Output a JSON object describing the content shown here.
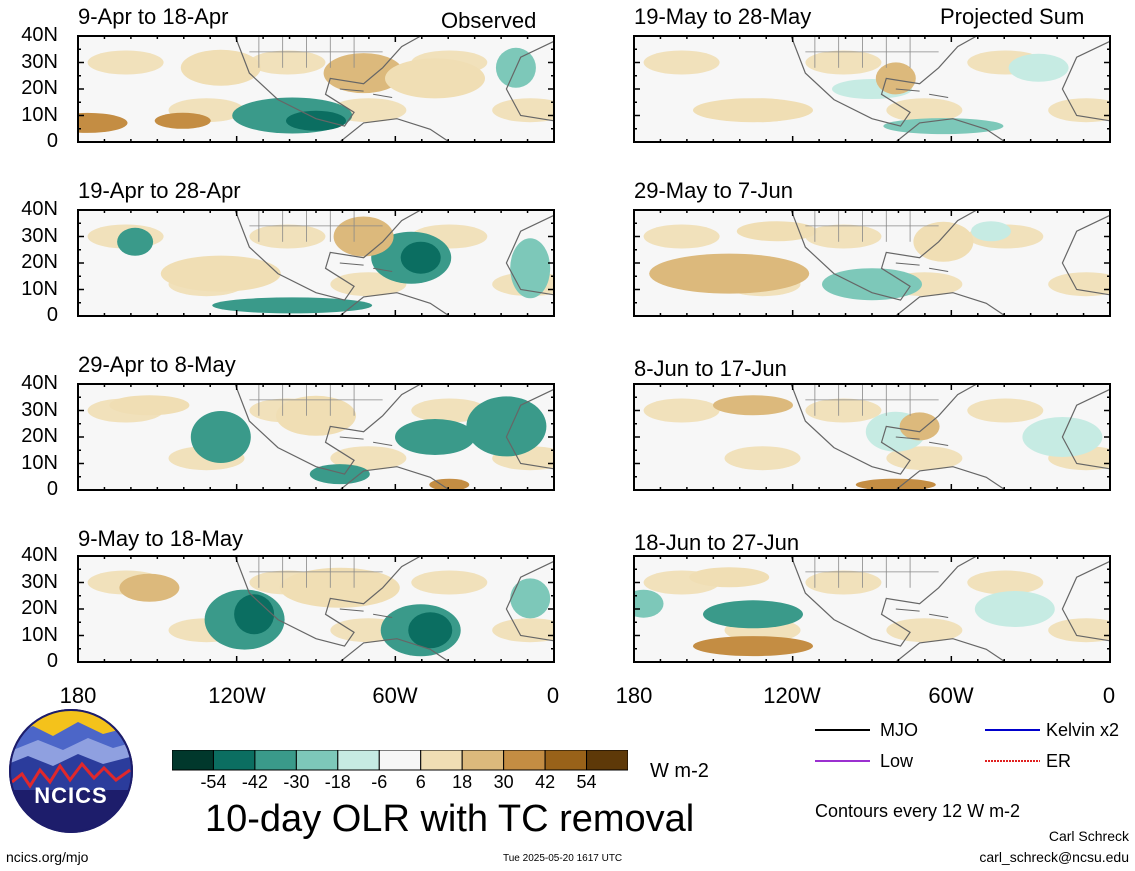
{
  "header": {
    "observed_label": "Observed",
    "projected_label": "Projected Sum"
  },
  "panels_left": [
    {
      "title": "9-Apr to 18-Apr"
    },
    {
      "title": "19-Apr to 28-Apr"
    },
    {
      "title": "29-Apr to 8-May"
    },
    {
      "title": "9-May to 18-May"
    }
  ],
  "panels_right": [
    {
      "title": "19-May to 28-May"
    },
    {
      "title": "29-May to 7-Jun"
    },
    {
      "title": "8-Jun to 17-Jun"
    },
    {
      "title": "18-Jun to 27-Jun"
    }
  ],
  "lat_labels": [
    "40N",
    "30N",
    "20N",
    "10N",
    "0"
  ],
  "lon_labels": [
    "180",
    "120W",
    "60W",
    "0"
  ],
  "colorbar": {
    "labels": [
      "-54",
      "-42",
      "-30",
      "-18",
      "-6",
      "6",
      "18",
      "30",
      "42",
      "54"
    ],
    "colors": [
      "#01382c",
      "#0b6e61",
      "#3a9a8a",
      "#7dc8b9",
      "#c6ebe3",
      "#f7f7f7",
      "#f0deb4",
      "#dcb97c",
      "#c48d43",
      "#996219",
      "#5e3908"
    ],
    "units": "W m-2"
  },
  "legend": {
    "items": [
      {
        "label": "MJO",
        "color": "#000000"
      },
      {
        "label": "Kelvin x2",
        "color": "#0000cc"
      },
      {
        "label": "Low",
        "color": "#9b30d0"
      },
      {
        "label": "ER",
        "color": "#e02020"
      }
    ],
    "contours_note": "Contours every 12 W m-2"
  },
  "main_title": "10-day OLR with TC removal",
  "logo_text": "NCICS",
  "footer": {
    "url": "ncics.org/mjo",
    "timestamp": "Tue 2025-05-20 1617 UTC",
    "author": "Carl Schreck",
    "email": "carl_schreck@ncsu.edu"
  }
}
